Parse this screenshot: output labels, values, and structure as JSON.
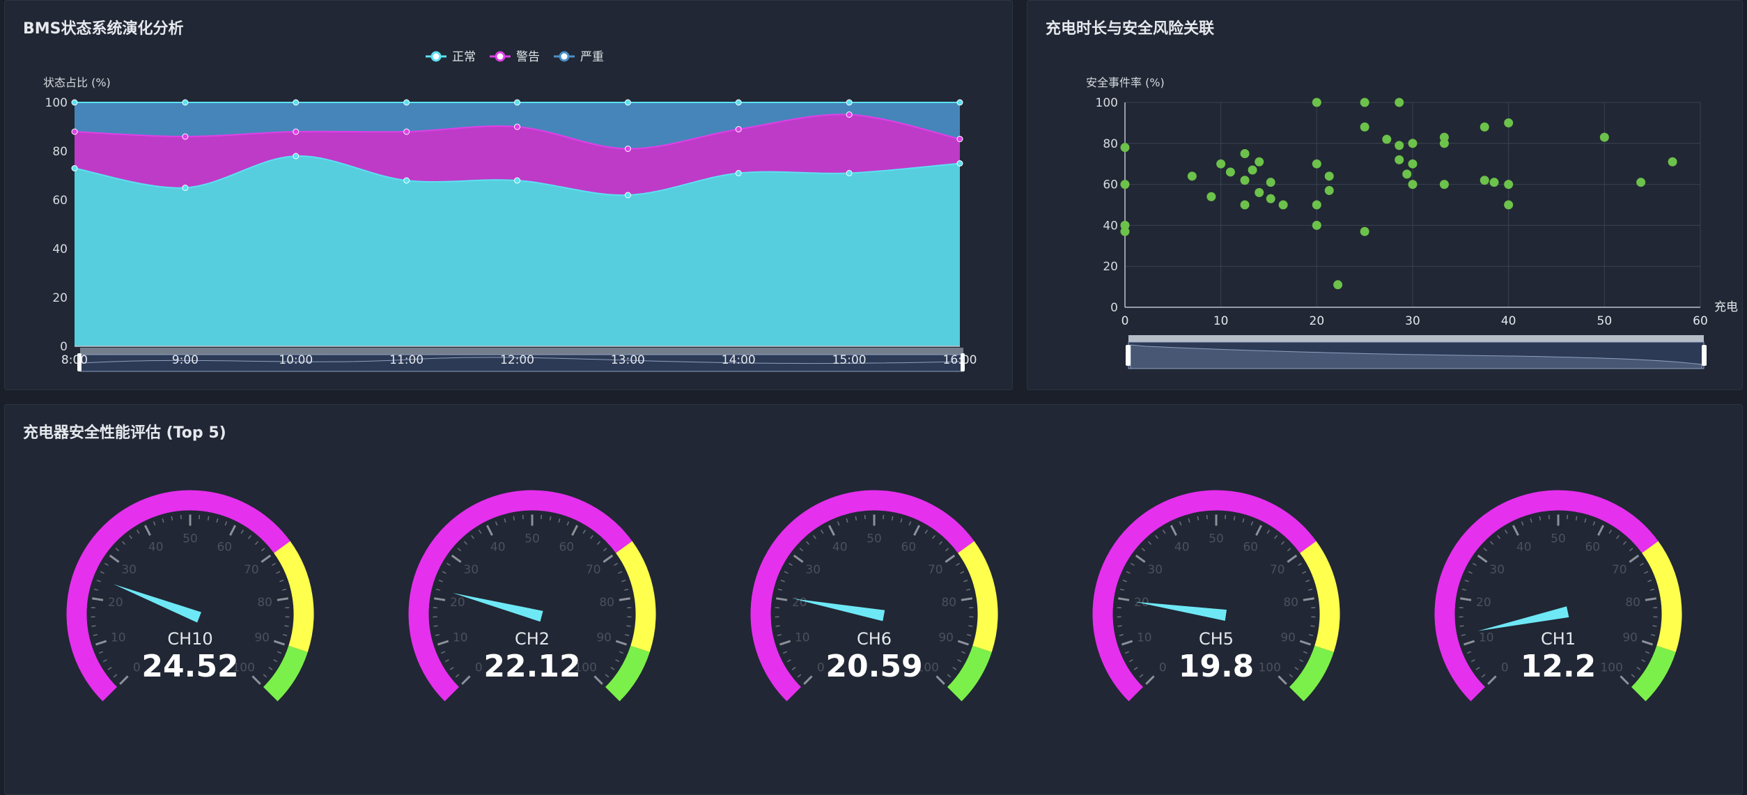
{
  "bms_panel": {
    "title": "BMS状态系统演化分析"
  },
  "scatter_panel": {
    "title": "充电时长与安全风险关联"
  },
  "gauge_panel": {
    "title": "充电器安全性能评估 (Top 5)"
  },
  "colors": {
    "normal": "#5ce1f0",
    "warning": "#e040e8",
    "severe": "#4a90c8",
    "scatter_point": "#6cc24a",
    "gauge_red": "#e530ee",
    "gauge_yellow": "#ffff4d",
    "gauge_green": "#7cf04a",
    "pointer": "#6fe8f6"
  },
  "chart_data": [
    {
      "type": "area",
      "title": "BMS状态系统演化分析",
      "ylabel": "状态占比 (%)",
      "x": [
        "8:00",
        "9:00",
        "10:00",
        "11:00",
        "12:00",
        "13:00",
        "14:00",
        "15:00",
        "16:00"
      ],
      "ylim": [
        0,
        100
      ],
      "yticks": [
        "0",
        "20",
        "40",
        "60",
        "80",
        "100"
      ],
      "stacked": true,
      "legend": "top-center",
      "series": [
        {
          "name": "正常",
          "values": [
            73,
            65,
            78,
            68,
            68,
            62,
            71,
            71,
            75
          ]
        },
        {
          "name": "警告",
          "values": [
            15,
            21,
            10,
            20,
            22,
            19,
            18,
            24,
            10
          ]
        },
        {
          "name": "严重",
          "values": [
            12,
            14,
            12,
            12,
            10,
            19,
            11,
            5,
            15
          ]
        }
      ]
    },
    {
      "type": "scatter",
      "title": "充电时长与安全风险关联",
      "ylabel": "安全事件率 (%)",
      "xlabel": "充电",
      "xlim": [
        0,
        60
      ],
      "ylim": [
        0,
        100
      ],
      "xticks": [
        "0",
        "10",
        "20",
        "30",
        "40",
        "50",
        "60"
      ],
      "yticks": [
        "0",
        "20",
        "40",
        "60",
        "80",
        "100"
      ],
      "grid": true,
      "points": [
        [
          0,
          78
        ],
        [
          0,
          60
        ],
        [
          0,
          40
        ],
        [
          0,
          37
        ],
        [
          7,
          64
        ],
        [
          9,
          54
        ],
        [
          10,
          70
        ],
        [
          11,
          66
        ],
        [
          12.5,
          62
        ],
        [
          12.5,
          50
        ],
        [
          12.5,
          75
        ],
        [
          13.3,
          67
        ],
        [
          14,
          71
        ],
        [
          14,
          56
        ],
        [
          15.2,
          61
        ],
        [
          15.2,
          53
        ],
        [
          16.5,
          50
        ],
        [
          20,
          100
        ],
        [
          20,
          70
        ],
        [
          20,
          50
        ],
        [
          20,
          40
        ],
        [
          21.3,
          64
        ],
        [
          21.3,
          57
        ],
        [
          22.2,
          11
        ],
        [
          25,
          100
        ],
        [
          25,
          88
        ],
        [
          25,
          37
        ],
        [
          27.3,
          82
        ],
        [
          28.6,
          100
        ],
        [
          28.6,
          79
        ],
        [
          28.6,
          72
        ],
        [
          29.4,
          65
        ],
        [
          30,
          80
        ],
        [
          30,
          70
        ],
        [
          30,
          60
        ],
        [
          33.3,
          83
        ],
        [
          33.3,
          80
        ],
        [
          33.3,
          60
        ],
        [
          37.5,
          88
        ],
        [
          37.5,
          62
        ],
        [
          38.5,
          61
        ],
        [
          40,
          90
        ],
        [
          40,
          60
        ],
        [
          40,
          50
        ],
        [
          50,
          83
        ],
        [
          53.8,
          61
        ],
        [
          57.1,
          71
        ]
      ]
    },
    {
      "type": "gauge",
      "title": "充电器安全性能评估 (Top 5)",
      "min": 0,
      "max": 100,
      "tick_labels": [
        "0",
        "10",
        "20",
        "30",
        "40",
        "50",
        "60",
        "70",
        "80",
        "90",
        "100"
      ],
      "bands": [
        {
          "to": 0.7,
          "color": "#e530ee"
        },
        {
          "to": 0.9,
          "color": "#ffff4d"
        },
        {
          "to": 1.0,
          "color": "#7cf04a"
        }
      ],
      "gauges": [
        {
          "name": "CH10",
          "value": 24.52
        },
        {
          "name": "CH2",
          "value": 22.12
        },
        {
          "name": "CH6",
          "value": 20.59
        },
        {
          "name": "CH5",
          "value": 19.8
        },
        {
          "name": "CH1",
          "value": 12.2
        }
      ]
    }
  ]
}
